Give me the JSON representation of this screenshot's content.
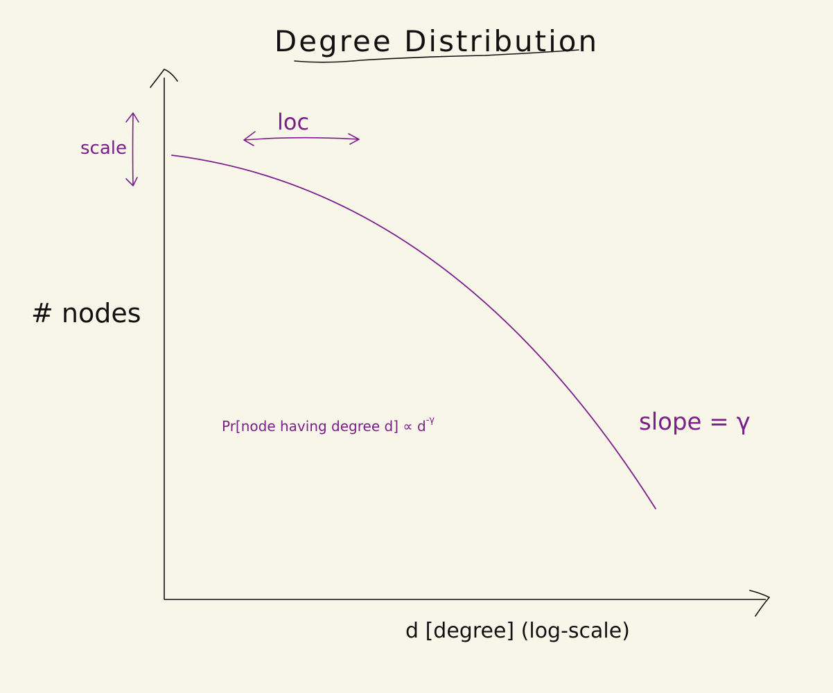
{
  "title": "Degree Distribution",
  "y_axis_label": "# nodes",
  "x_axis_label": "d [degree] (log-scale)",
  "annotations": {
    "scale_label": "scale",
    "loc_label": "loc",
    "formula_prefix": "Pr[node having degree d] ∝ d",
    "formula_exponent": "-γ",
    "slope_label": "slope = γ"
  },
  "colors": {
    "ink": "#111111",
    "annotation": "#7b1d8a",
    "background": "#f8f5e9"
  }
}
